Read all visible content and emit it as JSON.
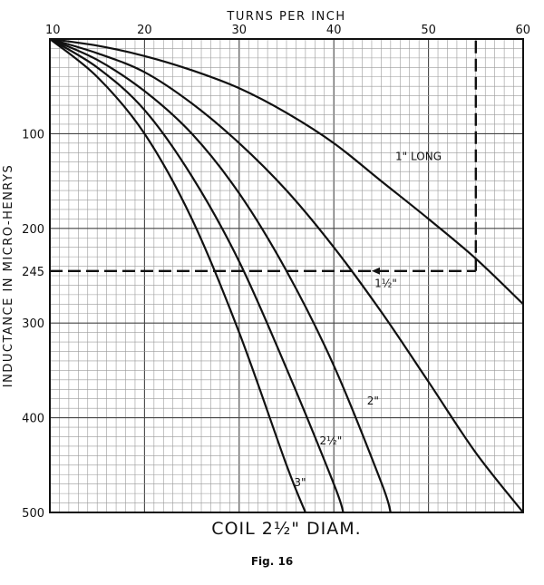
{
  "chart_data": {
    "type": "line",
    "title": "COIL 2½\" DIAM.",
    "caption": "Fig. 16",
    "xlabel": "TURNS PER INCH",
    "ylabel": "INDUCTANCE IN MICRO-HENRYS",
    "xlim": [
      10,
      60
    ],
    "ylim": [
      0,
      500
    ],
    "y_inverted": true,
    "x_ticks": [
      "10",
      "20",
      "30",
      "40",
      "50",
      "60"
    ],
    "y_ticks": [
      {
        "value": 100,
        "label": "100"
      },
      {
        "value": 200,
        "label": "200"
      },
      {
        "value": 245,
        "label": "245"
      },
      {
        "value": 300,
        "label": "300"
      },
      {
        "value": 400,
        "label": "400"
      },
      {
        "value": 500,
        "label": "500"
      }
    ],
    "grid": true,
    "legend": "none",
    "series": [
      {
        "name": "1\" LONG",
        "points": [
          [
            10,
            0
          ],
          [
            15,
            7
          ],
          [
            20,
            18
          ],
          [
            25,
            33
          ],
          [
            30,
            52
          ],
          [
            35,
            78
          ],
          [
            40,
            110
          ],
          [
            45,
            150
          ],
          [
            50,
            190
          ],
          [
            55,
            232
          ],
          [
            60,
            280
          ]
        ]
      },
      {
        "name": "1½\"",
        "points": [
          [
            10,
            0
          ],
          [
            15,
            15
          ],
          [
            20,
            35
          ],
          [
            25,
            68
          ],
          [
            30,
            110
          ],
          [
            35,
            160
          ],
          [
            40,
            220
          ],
          [
            45,
            288
          ],
          [
            50,
            362
          ],
          [
            55,
            437
          ],
          [
            60,
            500
          ]
        ]
      },
      {
        "name": "2\"",
        "points": [
          [
            10,
            0
          ],
          [
            15,
            22
          ],
          [
            20,
            55
          ],
          [
            25,
            100
          ],
          [
            30,
            163
          ],
          [
            35,
            245
          ],
          [
            40,
            345
          ],
          [
            45,
            468
          ],
          [
            46,
            500
          ]
        ]
      },
      {
        "name": "2½\"",
        "points": [
          [
            10,
            0
          ],
          [
            15,
            30
          ],
          [
            20,
            75
          ],
          [
            25,
            145
          ],
          [
            30,
            235
          ],
          [
            35,
            348
          ],
          [
            40,
            470
          ],
          [
            41,
            500
          ]
        ]
      },
      {
        "name": "3\"",
        "points": [
          [
            10,
            0
          ],
          [
            15,
            40
          ],
          [
            20,
            100
          ],
          [
            25,
            190
          ],
          [
            30,
            310
          ],
          [
            35,
            450
          ],
          [
            37,
            500
          ]
        ]
      }
    ],
    "annotations": [
      {
        "type": "guide",
        "points": [
          [
            10,
            245
          ],
          [
            55,
            245
          ]
        ]
      },
      {
        "type": "guide",
        "points": [
          [
            55,
            245
          ],
          [
            55,
            0
          ]
        ]
      }
    ],
    "curve_labels": [
      {
        "series": "1\" LONG",
        "text": "1\" LONG"
      },
      {
        "series": "1½\"",
        "text": "1½\""
      },
      {
        "series": "2\"",
        "text": "2\""
      },
      {
        "series": "2½\"",
        "text": "2½\""
      },
      {
        "series": "3\"",
        "text": "3\""
      }
    ]
  }
}
